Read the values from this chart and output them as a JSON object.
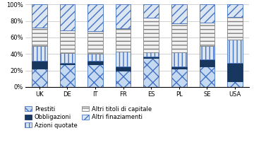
{
  "categories": [
    "UK",
    "DE",
    "IT",
    "FR",
    "ES",
    "PL",
    "SE",
    "USA"
  ],
  "series_order": [
    "Prestiti",
    "Obbligazioni",
    "Azioni quotate",
    "Altri titoli di capitale",
    "Altri finaziamenti"
  ],
  "series": {
    "Prestiti": [
      22,
      27,
      27,
      20,
      35,
      22,
      25,
      7
    ],
    "Obbligazioni": [
      10,
      2,
      5,
      5,
      2,
      3,
      8,
      22
    ],
    "Azioni quotate": [
      18,
      12,
      8,
      18,
      5,
      17,
      17,
      28
    ],
    "Altri titoli di capitale": [
      22,
      28,
      28,
      28,
      42,
      35,
      28,
      28
    ],
    "Altri finaziamenti": [
      28,
      31,
      32,
      29,
      16,
      23,
      22,
      15
    ]
  },
  "series_props": [
    {
      "name": "Prestiti",
      "facecolor": "#c5d9f1",
      "hatch": "xx",
      "edgecolor": "#4472c4",
      "linewidth": 0.6
    },
    {
      "name": "Obbligazioni",
      "facecolor": "#17375e",
      "hatch": "",
      "edgecolor": "#17375e",
      "linewidth": 0.6
    },
    {
      "name": "Azioni quotate",
      "facecolor": "#dce6f1",
      "hatch": "|||",
      "edgecolor": "#4472c4",
      "linewidth": 0.6
    },
    {
      "name": "Altri titoli di capitale",
      "facecolor": "#f2f2f2",
      "hatch": "---",
      "edgecolor": "#808080",
      "linewidth": 0.6
    },
    {
      "name": "Altri finaziamenti",
      "facecolor": "#dce6f1",
      "hatch": "///",
      "edgecolor": "#4472c4",
      "linewidth": 0.6
    }
  ],
  "ylim": [
    0,
    100
  ],
  "yticks": [
    0,
    20,
    40,
    60,
    80,
    100
  ],
  "yticklabels": [
    "0%",
    "20%",
    "40%",
    "60%",
    "80%",
    "100%"
  ],
  "bg_color": "#ffffff",
  "bar_width": 0.55,
  "grid_color": "#c0c0c0",
  "tick_fontsize": 6.0,
  "legend_fontsize": 6.0
}
